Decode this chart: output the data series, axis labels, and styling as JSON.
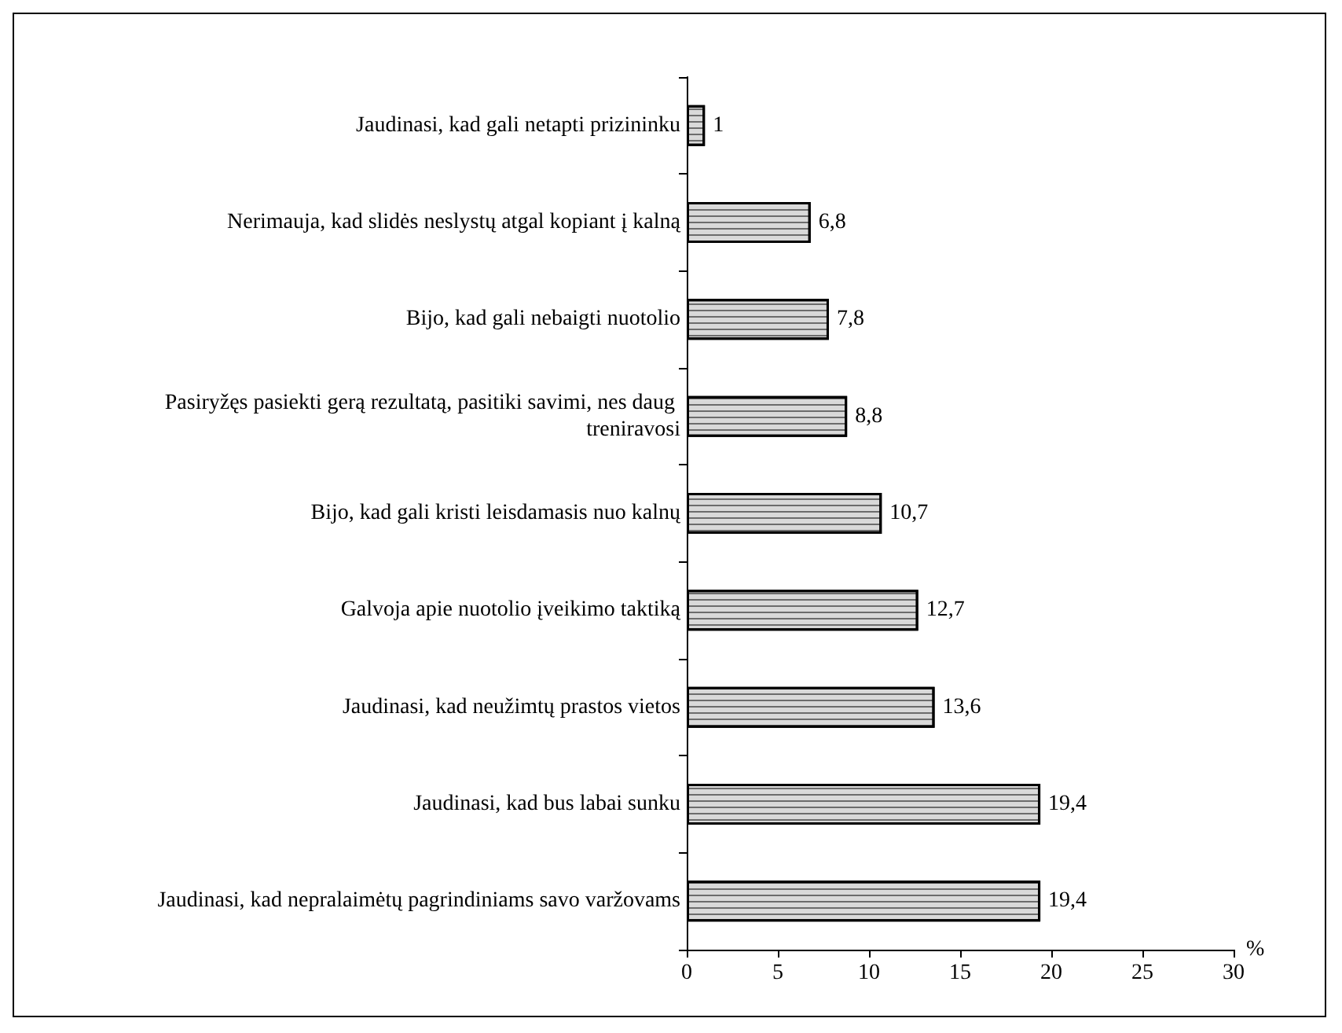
{
  "chart_data": {
    "type": "bar",
    "orientation": "horizontal",
    "xlabel": "%",
    "categories": [
      "Jaudinasi, kad gali netapti prizininku",
      "Nerimauja, kad slidės neslystų atgal kopiant į kalną",
      "Bijo, kad gali nebaigti nuotolio",
      "Pasiryžęs pasiekti gerą rezultatą, pasitiki savimi, nes daug treniravosi",
      "Bijo, kad gali kristi leisdamasis nuo kalnų",
      "Galvoja apie nuotolio įveikimo taktiką",
      "Jaudinasi, kad neužimtų prastos vietos",
      "Jaudinasi, kad bus labai sunku",
      "Jaudinasi, kad nepralaimėtų pagrindiniams savo varžovams"
    ],
    "values": [
      1,
      6.8,
      7.8,
      8.8,
      10.7,
      12.7,
      13.6,
      19.4,
      19.4
    ],
    "value_labels": [
      "1",
      "6,8",
      "7,8",
      "8,8",
      "10,7",
      "12,7",
      "13,6",
      "19,4",
      "19,4"
    ],
    "color": "#d9d9d9",
    "xlim": [
      0,
      30
    ],
    "xticks": [
      0,
      5,
      10,
      15,
      20,
      25,
      30
    ],
    "grid": false
  }
}
